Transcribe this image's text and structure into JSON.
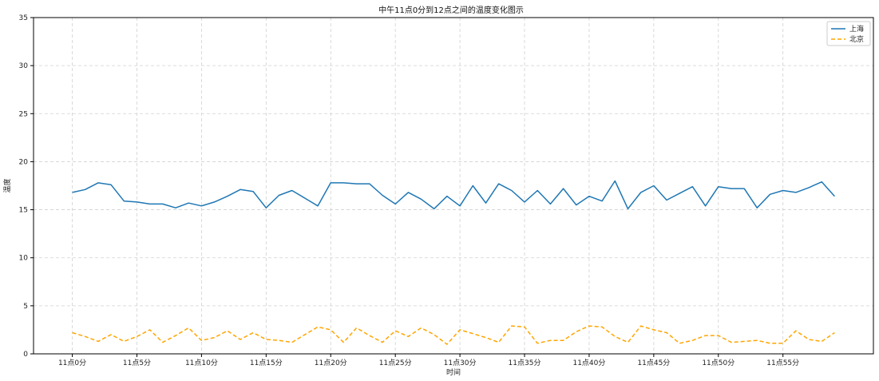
{
  "chart_data": {
    "type": "line",
    "title": "中午11点0分到12点之间的温度变化图示",
    "xlabel": "时间",
    "ylabel": "温度",
    "ylim": [
      0,
      35
    ],
    "yticks": [
      0,
      5,
      10,
      15,
      20,
      25,
      30,
      35
    ],
    "xticks": [
      0,
      5,
      10,
      15,
      20,
      25,
      30,
      35,
      40,
      45,
      50,
      55
    ],
    "xtick_labels": [
      "11点0分",
      "11点5分",
      "11点10分",
      "11点15分",
      "11点20分",
      "11点25分",
      "11点30分",
      "11点35分",
      "11点40分",
      "11点45分",
      "11点50分",
      "11点55分"
    ],
    "x": [
      0,
      1,
      2,
      3,
      4,
      5,
      6,
      7,
      8,
      9,
      10,
      11,
      12,
      13,
      14,
      15,
      16,
      17,
      18,
      19,
      20,
      21,
      22,
      23,
      24,
      25,
      26,
      27,
      28,
      29,
      30,
      31,
      32,
      33,
      34,
      35,
      36,
      37,
      38,
      39,
      40,
      41,
      42,
      43,
      44,
      45,
      46,
      47,
      48,
      49,
      50,
      51,
      52,
      53,
      54,
      55,
      56,
      57,
      58,
      59
    ],
    "grid": true,
    "legend_position": "top-right",
    "series": [
      {
        "name": "上海",
        "color": "#1f77b4",
        "style": "solid",
        "values": [
          16.8,
          17.1,
          17.8,
          17.6,
          15.9,
          15.8,
          15.6,
          15.6,
          15.2,
          15.7,
          15.4,
          15.8,
          16.4,
          17.1,
          16.9,
          15.2,
          16.5,
          17.0,
          16.2,
          15.4,
          17.8,
          17.8,
          17.7,
          17.7,
          16.5,
          15.6,
          16.8,
          16.1,
          15.1,
          16.4,
          15.4,
          17.5,
          15.7,
          17.7,
          17.0,
          15.8,
          17.0,
          15.6,
          17.2,
          15.5,
          16.4,
          15.9,
          18.0,
          15.1,
          16.8,
          17.5,
          16.0,
          16.7,
          17.4,
          15.4,
          17.4,
          17.2,
          17.2,
          15.2,
          16.6,
          17.0,
          16.8,
          17.3,
          17.9,
          16.4
        ]
      },
      {
        "name": "北京",
        "color": "#ffa500",
        "style": "dashed",
        "values": [
          2.2,
          1.8,
          1.3,
          2.0,
          1.3,
          1.8,
          2.5,
          1.2,
          1.9,
          2.7,
          1.4,
          1.7,
          2.4,
          1.5,
          2.2,
          1.5,
          1.4,
          1.2,
          2.0,
          2.8,
          2.5,
          1.2,
          2.7,
          1.9,
          1.2,
          2.4,
          1.8,
          2.7,
          2.0,
          1.0,
          2.5,
          2.1,
          1.7,
          1.2,
          2.9,
          2.8,
          1.1,
          1.4,
          1.4,
          2.3,
          2.9,
          2.8,
          1.8,
          1.2,
          2.9,
          2.5,
          2.2,
          1.1,
          1.4,
          1.9,
          1.9,
          1.2,
          1.3,
          1.4,
          1.1,
          1.1,
          2.4,
          1.5,
          1.3,
          2.2
        ]
      }
    ]
  }
}
